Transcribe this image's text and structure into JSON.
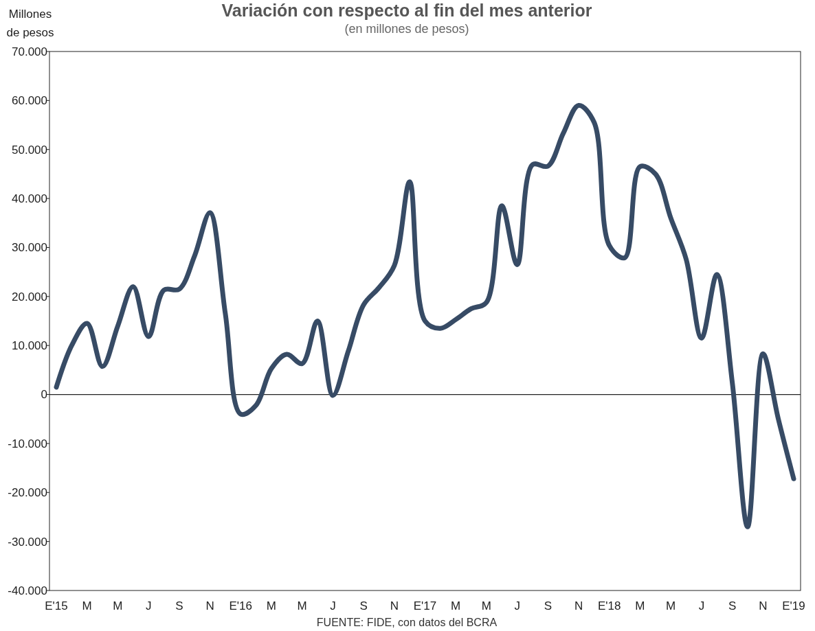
{
  "chart_data": {
    "type": "line",
    "title": "Variación con respecto al fin del mes anterior",
    "subtitle": "(en millones de pesos)",
    "ylabel": "Millones de pesos",
    "annotations": [
      "FUENTE: FIDE, con datos del BCRA"
    ],
    "categories": [
      "E'15",
      null,
      "M",
      null,
      "M",
      null,
      "J",
      null,
      "S",
      null,
      "N",
      null,
      "E'16",
      null,
      "M",
      null,
      "M",
      null,
      "J",
      null,
      "S",
      null,
      "N",
      null,
      "E'17",
      null,
      "M",
      null,
      "M",
      null,
      "J",
      null,
      "S",
      null,
      "N",
      null,
      "E'18",
      null,
      "M",
      null,
      "M",
      null,
      "J",
      null,
      "S",
      null,
      "N",
      null,
      "E'19"
    ],
    "series": [
      {
        "color": "#374b65",
        "values": [
          1500,
          10000,
          14500,
          5700,
          14000,
          22000,
          11800,
          21300,
          21500,
          28300,
          37100,
          16500,
          -4000,
          -2200,
          5300,
          8200,
          6300,
          15000,
          -200,
          8800,
          18300,
          21800,
          26300,
          43400,
          15000,
          13500,
          15300,
          17500,
          18800,
          38500,
          26500,
          46900,
          46600,
          53300,
          59000,
          55600,
          30400,
          27900,
          46500,
          45000,
          36000,
          27600,
          11500,
          24500,
          2500,
          -27000,
          8300,
          -5000,
          -17200
        ]
      }
    ],
    "ylim": [
      -40000,
      70000
    ],
    "yticks": [
      {
        "value": -40000,
        "label": "-40.000"
      },
      {
        "value": -30000,
        "label": "-30.000"
      },
      {
        "value": -20000,
        "label": "-20.000"
      },
      {
        "value": -10000,
        "label": "-10.000"
      },
      0,
      {
        "value": 10000,
        "label": "10.000"
      },
      {
        "value": 20000,
        "label": "20.000"
      },
      {
        "value": 30000,
        "label": "30.000"
      },
      {
        "value": 40000,
        "label": "40.000"
      },
      {
        "value": 50000,
        "label": "50.000"
      },
      {
        "value": 60000,
        "label": "60.000"
      },
      {
        "value": 70000,
        "label": "70.000"
      }
    ],
    "ref_lines": [
      {
        "axis": "y",
        "value": 0,
        "color": "#222222"
      }
    ]
  }
}
